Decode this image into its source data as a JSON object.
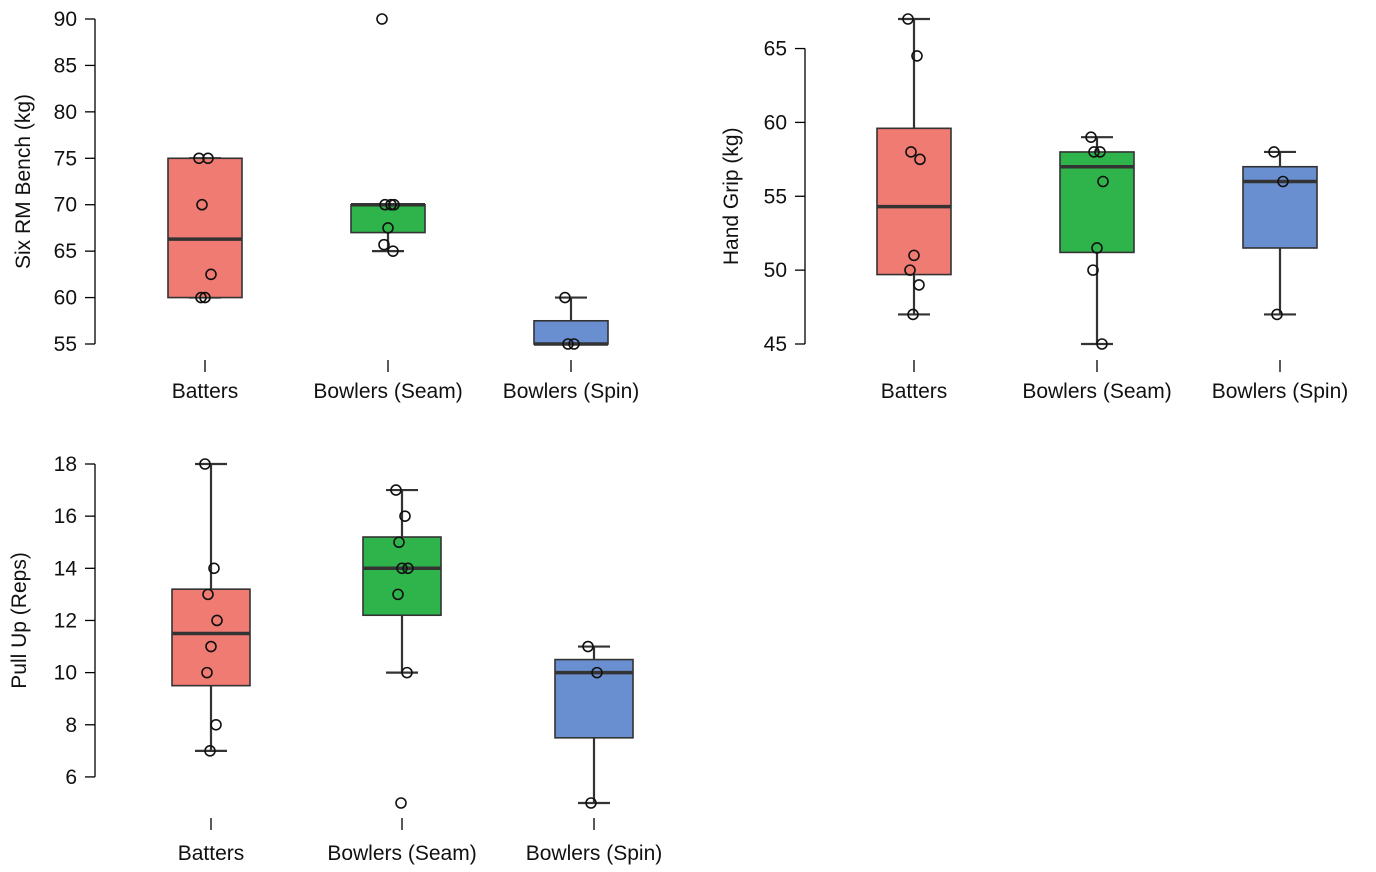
{
  "colors": {
    "Batters": "#f07b72",
    "Bowlers (Seam)": "#2fb34b",
    "Bowlers (Spin)": "#6a8fd0",
    "stroke": "#333333"
  },
  "chart_data": [
    {
      "type": "box",
      "ylabel": "Six RM Bench (kg)",
      "yticks": [
        55,
        60,
        65,
        70,
        75,
        80,
        85,
        90
      ],
      "ylim": [
        55,
        90
      ],
      "categories": [
        "Batters",
        "Bowlers (Seam)",
        "Bowlers (Spin)"
      ],
      "series": [
        {
          "name": "Batters",
          "whisker_low": 60,
          "q1": 60,
          "median": 66.3,
          "q3": 75,
          "whisker_high": 75,
          "points": [
            75,
            75,
            70,
            62.5,
            60,
            60
          ]
        },
        {
          "name": "Bowlers (Seam)",
          "whisker_low": 65,
          "q1": 67,
          "median": 70,
          "q3": 70,
          "whisker_high": 70,
          "points": [
            90,
            70,
            70,
            70,
            67.5,
            65.7,
            65
          ]
        },
        {
          "name": "Bowlers (Spin)",
          "whisker_low": 55,
          "q1": 55,
          "median": 55,
          "q3": 57.5,
          "whisker_high": 60,
          "points": [
            60,
            55,
            55
          ]
        }
      ]
    },
    {
      "type": "box",
      "ylabel": "Hand Grip (kg)",
      "yticks": [
        45,
        50,
        55,
        60,
        65
      ],
      "ylim": [
        45,
        67
      ],
      "categories": [
        "Batters",
        "Bowlers (Seam)",
        "Bowlers (Spin)"
      ],
      "series": [
        {
          "name": "Batters",
          "whisker_low": 47,
          "q1": 49.7,
          "median": 54.3,
          "q3": 59.6,
          "whisker_high": 67,
          "points": [
            67,
            64.5,
            58,
            57.5,
            51,
            50,
            49,
            47
          ]
        },
        {
          "name": "Bowlers (Seam)",
          "whisker_low": 45,
          "q1": 51.2,
          "median": 57,
          "q3": 58,
          "whisker_high": 59,
          "points": [
            59,
            58,
            58,
            56,
            51.5,
            50,
            45
          ]
        },
        {
          "name": "Bowlers (Spin)",
          "whisker_low": 47,
          "q1": 51.5,
          "median": 56,
          "q3": 57,
          "whisker_high": 58,
          "points": [
            58,
            56,
            47
          ]
        }
      ]
    },
    {
      "type": "box",
      "ylabel": "Pull Up (Reps)",
      "yticks": [
        6,
        8,
        10,
        12,
        14,
        16,
        18
      ],
      "ylim": [
        5,
        18
      ],
      "categories": [
        "Batters",
        "Bowlers (Seam)",
        "Bowlers (Spin)"
      ],
      "series": [
        {
          "name": "Batters",
          "whisker_low": 7,
          "q1": 9.5,
          "median": 11.5,
          "q3": 13.2,
          "whisker_high": 18,
          "points": [
            18,
            14,
            13,
            12,
            11,
            10,
            8,
            7
          ]
        },
        {
          "name": "Bowlers (Seam)",
          "whisker_low": 10,
          "q1": 12.2,
          "median": 14,
          "q3": 15.2,
          "whisker_high": 17,
          "points": [
            17,
            16,
            15,
            14,
            14,
            13,
            10,
            5
          ]
        },
        {
          "name": "Bowlers (Spin)",
          "whisker_low": 5,
          "q1": 7.5,
          "median": 10,
          "q3": 10.5,
          "whisker_high": 11,
          "points": [
            11,
            10,
            5
          ]
        }
      ]
    }
  ]
}
